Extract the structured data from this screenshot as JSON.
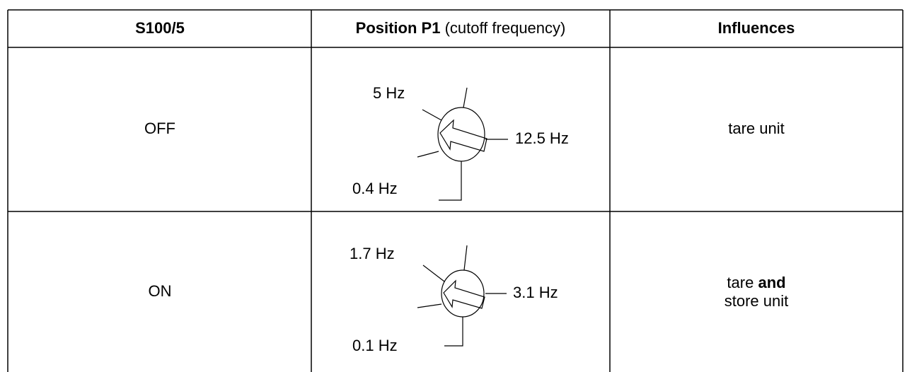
{
  "table": {
    "header": {
      "switch": "S100/5",
      "position": "Position P1",
      "position_note": "(cutoff frequency)",
      "influences": "Influences"
    },
    "rows": [
      {
        "switch": "OFF",
        "dial": {
          "upper_left": "5 Hz",
          "right": "12.5 Hz",
          "lower_left": "0.4 Hz"
        },
        "influence": {
          "line1": "tare unit"
        }
      },
      {
        "switch": "ON",
        "dial": {
          "upper_left": "1.7 Hz",
          "right": "3.1 Hz",
          "lower_left": "0.1 Hz"
        },
        "influence": {
          "line1_start": "tare",
          "line1_bold": "and",
          "line2": "store unit"
        }
      }
    ]
  }
}
